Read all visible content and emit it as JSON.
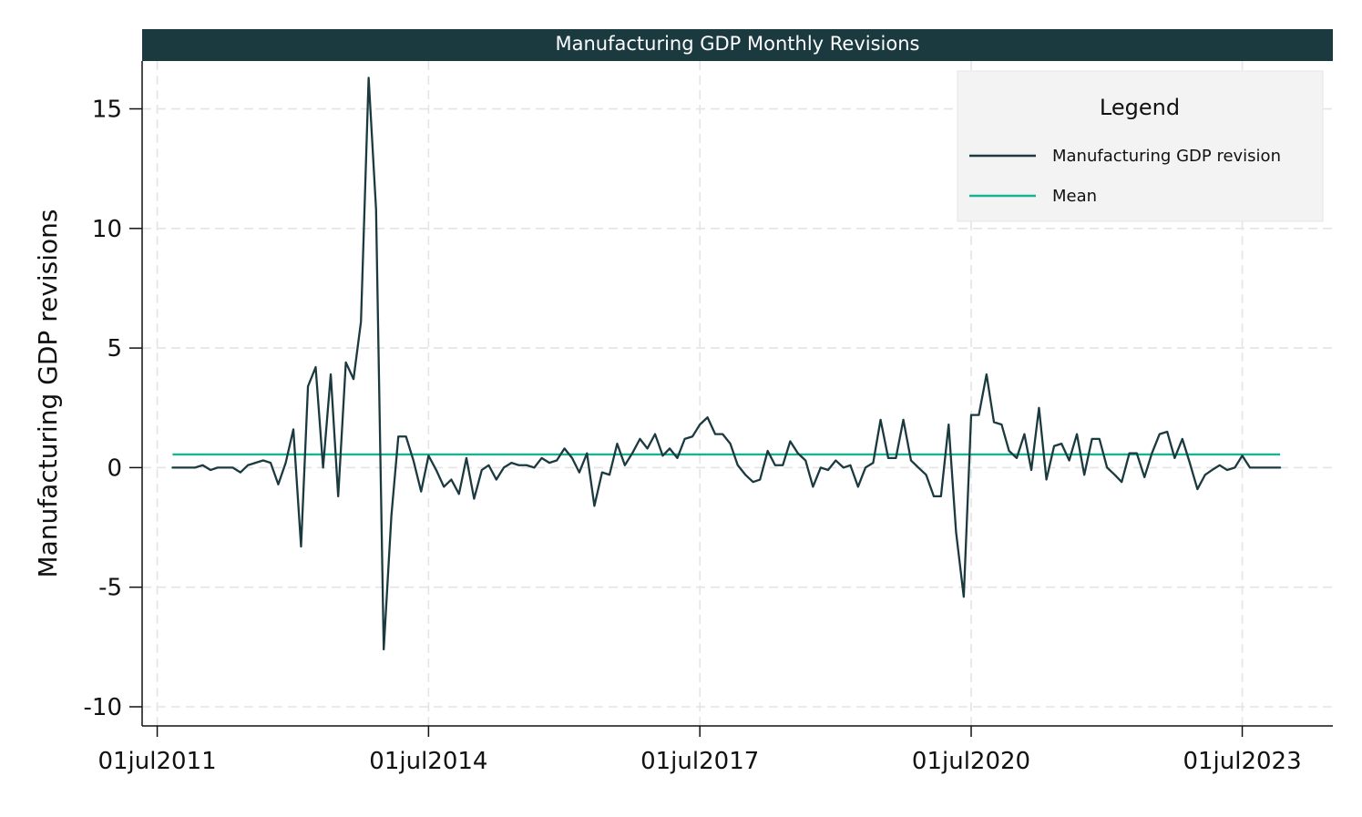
{
  "chart_data": {
    "type": "line",
    "title": "Manufacturing GDP Monthly Revisions",
    "ylabel": "Manufacturing GDP revisions",
    "xlabel": "",
    "xlim": [
      "2011-05-01",
      "2024-07-01"
    ],
    "ylim": [
      -10.8,
      17.0
    ],
    "y_ticks": [
      15,
      10,
      5,
      0,
      -5,
      -10
    ],
    "y_tick_labels": [
      "15",
      "10",
      "5",
      "0",
      "-5",
      "-10"
    ],
    "x_ticks": [
      "2011-07-01",
      "2014-07-01",
      "2017-07-01",
      "2020-07-01",
      "2023-07-01"
    ],
    "x_tick_labels": [
      "01jul2011",
      "01jul2014",
      "01jul2017",
      "01jul2020",
      "01jul2023"
    ],
    "grid": true,
    "legend": {
      "title": "Legend",
      "position": "top-right"
    },
    "start_month": "2011-09",
    "series": [
      {
        "name": "Manufacturing GDP revision",
        "color": "#1b3a40",
        "style": "line",
        "values": [
          0,
          0,
          0,
          0,
          0.1,
          -0.1,
          0,
          0,
          0,
          -0.2,
          0.1,
          0.2,
          0.3,
          0.2,
          -0.7,
          0.2,
          1.6,
          -3.3,
          3.4,
          4.2,
          0,
          3.9,
          -1.2,
          4.4,
          3.7,
          6.1,
          16.3,
          10.8,
          -7.6,
          -2,
          1.3,
          1.3,
          0.3,
          -1,
          0.5,
          -0.1,
          -0.8,
          -0.5,
          -1.1,
          0.4,
          -1.3,
          -0.1,
          0.1,
          -0.5,
          0,
          0.2,
          0.1,
          0.1,
          0,
          0.4,
          0.2,
          0.3,
          0.8,
          0.4,
          -0.2,
          0.6,
          -1.6,
          -0.2,
          -0.3,
          1,
          0.1,
          0.6,
          1.2,
          0.8,
          1.4,
          0.5,
          0.8,
          0.4,
          1.2,
          1.3,
          1.8,
          2.1,
          1.4,
          1.4,
          1,
          0.1,
          -0.3,
          -0.6,
          -0.5,
          0.7,
          0.1,
          0.1,
          1.1,
          0.6,
          0.3,
          -0.8,
          0,
          -0.1,
          0.3,
          0,
          0.1,
          -0.8,
          0,
          0.2,
          2,
          0.4,
          0.4,
          2,
          0.3,
          0,
          -0.3,
          -1.2,
          -1.2,
          1.8,
          -2.7,
          -5.4,
          2.2,
          2.2,
          3.9,
          1.9,
          1.8,
          0.7,
          0.4,
          1.4,
          -0.1,
          2.5,
          -0.5,
          0.9,
          1,
          0.3,
          1.4,
          -0.3,
          1.2,
          1.2,
          0,
          -0.3,
          -0.6,
          0.6,
          0.6,
          -0.4,
          0.6,
          1.4,
          1.5,
          0.4,
          1.2,
          0.2,
          -0.9,
          -0.3,
          -0.1,
          0.1,
          -0.1,
          0,
          0.5,
          0,
          0,
          0,
          0,
          0
        ]
      },
      {
        "name": "Mean",
        "color": "#19b393",
        "style": "line",
        "value": 0.55
      }
    ]
  }
}
